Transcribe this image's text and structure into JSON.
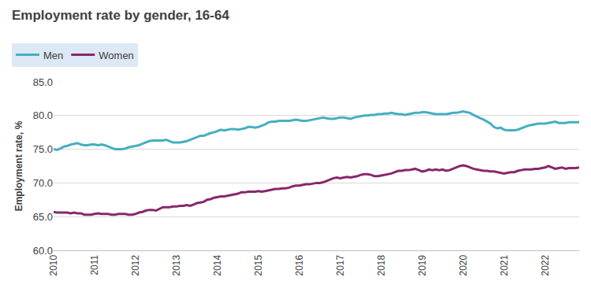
{
  "chart_data": {
    "type": "line",
    "title": "Employment rate by gender, 16-64",
    "y_label": "Employment rate, %",
    "categories": [
      "2010",
      null,
      null,
      null,
      null,
      null,
      null,
      null,
      null,
      null,
      null,
      null,
      "2011",
      null,
      null,
      null,
      null,
      null,
      null,
      null,
      null,
      null,
      null,
      null,
      "2012",
      null,
      null,
      null,
      null,
      null,
      null,
      null,
      null,
      null,
      null,
      null,
      "2013",
      null,
      null,
      null,
      null,
      null,
      null,
      null,
      null,
      null,
      null,
      null,
      "2014",
      null,
      null,
      null,
      null,
      null,
      null,
      null,
      null,
      null,
      null,
      null,
      "2015",
      null,
      null,
      null,
      null,
      null,
      null,
      null,
      null,
      null,
      null,
      null,
      "2016",
      null,
      null,
      null,
      null,
      null,
      null,
      null,
      null,
      null,
      null,
      null,
      "2017",
      null,
      null,
      null,
      null,
      null,
      null,
      null,
      null,
      null,
      null,
      null,
      "2018",
      null,
      null,
      null,
      null,
      null,
      null,
      null,
      null,
      null,
      null,
      null,
      "2019",
      null,
      null,
      null,
      null,
      null,
      null,
      null,
      null,
      null,
      null,
      null,
      "2020",
      null,
      null,
      null,
      null,
      null,
      null,
      null,
      null,
      null,
      null,
      null,
      "2021",
      null,
      null,
      null,
      null,
      null,
      null,
      null,
      null,
      null,
      null,
      null,
      "2022",
      null,
      null,
      null,
      null,
      null,
      null,
      null,
      null,
      null,
      null
    ],
    "series": [
      {
        "name": "Men",
        "color": "#45afc0",
        "values": [
          75.0,
          74.9,
          75.1,
          75.4,
          75.5,
          75.7,
          75.8,
          75.9,
          75.7,
          75.6,
          75.6,
          75.7,
          75.7,
          75.6,
          75.7,
          75.6,
          75.4,
          75.2,
          75.0,
          75.0,
          75.0,
          75.1,
          75.3,
          75.4,
          75.5,
          75.6,
          75.8,
          76.0,
          76.2,
          76.3,
          76.3,
          76.3,
          76.3,
          76.4,
          76.2,
          76.0,
          76.0,
          76.0,
          76.1,
          76.2,
          76.4,
          76.6,
          76.8,
          77.0,
          77.0,
          77.2,
          77.4,
          77.5,
          77.7,
          77.9,
          77.8,
          77.9,
          78.0,
          78.0,
          77.9,
          78.0,
          78.1,
          78.3,
          78.3,
          78.2,
          78.3,
          78.5,
          78.7,
          79.0,
          79.1,
          79.1,
          79.2,
          79.2,
          79.2,
          79.2,
          79.3,
          79.4,
          79.3,
          79.2,
          79.2,
          79.3,
          79.4,
          79.5,
          79.6,
          79.7,
          79.6,
          79.5,
          79.5,
          79.6,
          79.7,
          79.7,
          79.6,
          79.5,
          79.7,
          79.8,
          79.9,
          80.0,
          80.0,
          80.1,
          80.1,
          80.2,
          80.2,
          80.3,
          80.3,
          80.4,
          80.3,
          80.2,
          80.2,
          80.1,
          80.2,
          80.3,
          80.4,
          80.4,
          80.5,
          80.5,
          80.4,
          80.3,
          80.2,
          80.2,
          80.2,
          80.2,
          80.3,
          80.4,
          80.4,
          80.5,
          80.6,
          80.5,
          80.4,
          80.1,
          79.8,
          79.6,
          79.4,
          79.1,
          78.8,
          78.3,
          78.1,
          78.2,
          77.9,
          77.8,
          77.8,
          77.8,
          77.9,
          78.1,
          78.3,
          78.5,
          78.6,
          78.7,
          78.8,
          78.8,
          78.8,
          78.9,
          79.0,
          79.1,
          78.9,
          78.9,
          78.9,
          79.0,
          79.0,
          79.0,
          79.0
        ]
      },
      {
        "name": "Women",
        "color": "#86286a",
        "values": [
          65.7,
          65.6,
          65.6,
          65.6,
          65.6,
          65.5,
          65.6,
          65.5,
          65.5,
          65.3,
          65.3,
          65.3,
          65.4,
          65.5,
          65.4,
          65.4,
          65.4,
          65.3,
          65.3,
          65.4,
          65.4,
          65.4,
          65.3,
          65.3,
          65.4,
          65.6,
          65.7,
          65.9,
          66.0,
          66.0,
          65.9,
          66.2,
          66.4,
          66.4,
          66.4,
          66.5,
          66.5,
          66.6,
          66.6,
          66.7,
          66.6,
          66.8,
          67.0,
          67.1,
          67.2,
          67.5,
          67.6,
          67.8,
          67.9,
          68.0,
          68.0,
          68.1,
          68.2,
          68.3,
          68.4,
          68.6,
          68.6,
          68.7,
          68.7,
          68.7,
          68.8,
          68.7,
          68.8,
          68.9,
          69.0,
          69.1,
          69.1,
          69.2,
          69.2,
          69.3,
          69.5,
          69.6,
          69.6,
          69.7,
          69.8,
          69.8,
          69.9,
          70.0,
          70.0,
          70.1,
          70.3,
          70.5,
          70.7,
          70.8,
          70.7,
          70.8,
          70.9,
          70.8,
          70.9,
          71.0,
          71.2,
          71.3,
          71.3,
          71.2,
          71.0,
          71.0,
          71.1,
          71.2,
          71.3,
          71.4,
          71.6,
          71.8,
          71.8,
          71.9,
          71.9,
          72.0,
          72.1,
          71.9,
          71.7,
          71.8,
          72.0,
          71.9,
          72.0,
          71.9,
          72.0,
          71.8,
          71.9,
          72.1,
          72.3,
          72.5,
          72.6,
          72.5,
          72.3,
          72.1,
          72.0,
          71.9,
          71.8,
          71.8,
          71.7,
          71.7,
          71.6,
          71.5,
          71.4,
          71.5,
          71.6,
          71.6,
          71.8,
          71.9,
          72.0,
          72.0,
          72.0,
          72.1,
          72.1,
          72.2,
          72.3,
          72.5,
          72.3,
          72.1,
          72.2,
          72.3,
          72.1,
          72.2,
          72.2,
          72.2,
          72.3
        ]
      }
    ],
    "ylim": [
      60,
      85
    ],
    "yticks": [
      {
        "value": 60,
        "label": "60.0"
      },
      {
        "value": 65,
        "label": "65.0"
      },
      {
        "value": 70,
        "label": "70.0"
      },
      {
        "value": 75,
        "label": "75.0"
      },
      {
        "value": 80,
        "label": "80.0"
      },
      {
        "value": 85,
        "label": "85.0"
      }
    ],
    "grid": true,
    "legend": "top-left"
  }
}
